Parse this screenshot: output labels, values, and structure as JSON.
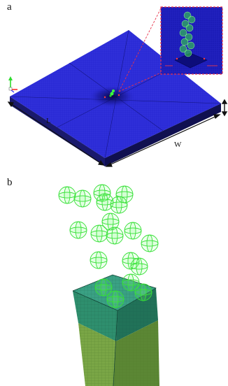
{
  "panels": {
    "a": {
      "label": "a"
    },
    "b": {
      "label": "b"
    }
  },
  "dimensions": {
    "length_label": "L",
    "width_label": "W"
  },
  "colors": {
    "plate_top": "#2b2bd6",
    "plate_side": "#1a1a70",
    "mesh_line": "#4a4aee",
    "sphere": "#3dff3d",
    "column_front": "#2e8f6e",
    "column_right": "#1f6e55",
    "column_top": "#3aa184",
    "column_lower_front": "#7aa646",
    "column_lower_right": "#5b8734",
    "inset_border": "#e8324a",
    "inset_bg": "#1c1cb8"
  },
  "icons": {
    "axis_triad": "axis-triad-icon",
    "height_arrow": "double-arrow-icon"
  }
}
